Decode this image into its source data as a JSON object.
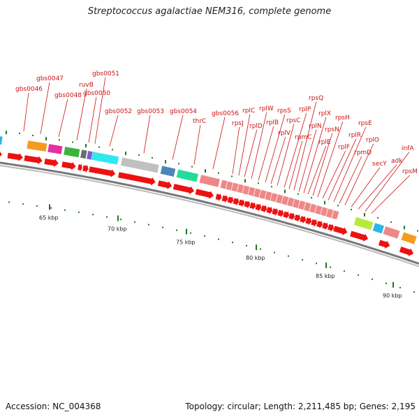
{
  "title": "Streptococcus agalactiae NEM316, complete genome",
  "footer": {
    "accession": "Accession: NC_004368",
    "summary": "Topology: circular; Length: 2,211,485 bp; Genes: 2,195"
  },
  "scale_labels": [
    "65 kbp",
    "70 kbp",
    "75 kbp",
    "80 kbp",
    "85 kbp",
    "90 kbp"
  ],
  "gene_labels": [
    "gbs0046",
    "gbs0047",
    "gbs0048",
    "ruvB",
    "gbs0050",
    "gbs0051",
    "gbs0052",
    "gbs0053",
    "gbs0054",
    "thrC",
    "gbs0056",
    "rpsJ",
    "rplC",
    "rplD",
    "rplW",
    "rplB",
    "rpsS",
    "rplV",
    "rpsC",
    "rplP",
    "rpmC",
    "rpsQ",
    "rplN",
    "rplX",
    "rplE",
    "rpsN",
    "rpsH",
    "rplF",
    "rplR",
    "rpsE",
    "rpmD",
    "rplO",
    "secY",
    "adk",
    "infA",
    "rpsM"
  ],
  "colors": {
    "label_red": "#cc1111",
    "arrow_red": "#ee1111",
    "ribosomal_pink": "#ee8888",
    "backbone": "#777777",
    "tick_green": "#227722"
  },
  "chart_data": {
    "type": "genome_map",
    "topology": "circular",
    "length_bp": 2211485,
    "genes_total": 2195,
    "visible_range_kbp": [
      60,
      92
    ],
    "scale_ticks_kbp": [
      65,
      70,
      75,
      80,
      85,
      90
    ],
    "genes": [
      {
        "name": "gbs0046",
        "color": "#29b6e8"
      },
      {
        "name": "gbs0047",
        "color": "#f39c1f"
      },
      {
        "name": "gbs0048",
        "color": "#e62fa0"
      },
      {
        "name": "ruvB",
        "color": "#3cb33c"
      },
      {
        "name": "gbs0050",
        "color": "#6b6b6b"
      },
      {
        "name": "gbs0051",
        "color": "#7a5dc8"
      },
      {
        "name": "gbs0052",
        "color": "#2ee8f0"
      },
      {
        "name": "gbs0053",
        "color": "#c0c0c0"
      },
      {
        "name": "gbs0054",
        "color": "#4a86b8"
      },
      {
        "name": "thrC",
        "color": "#22dd99"
      },
      {
        "name": "gbs0056",
        "color": "#ee8888"
      },
      {
        "name": "rpsJ",
        "color": "#ee8888"
      },
      {
        "name": "rplC",
        "color": "#ee8888"
      },
      {
        "name": "rplD",
        "color": "#ee8888"
      },
      {
        "name": "rplW",
        "color": "#ee8888"
      },
      {
        "name": "rplB",
        "color": "#ee8888"
      },
      {
        "name": "rpsS",
        "color": "#ee8888"
      },
      {
        "name": "rplV",
        "color": "#ee8888"
      },
      {
        "name": "rpsC",
        "color": "#ee8888"
      },
      {
        "name": "rplP",
        "color": "#ee8888"
      },
      {
        "name": "rpmC",
        "color": "#ee8888"
      },
      {
        "name": "rpsQ",
        "color": "#ee8888"
      },
      {
        "name": "rplN",
        "color": "#ee8888"
      },
      {
        "name": "rplX",
        "color": "#ee8888"
      },
      {
        "name": "rplE",
        "color": "#ee8888"
      },
      {
        "name": "rpsN",
        "color": "#ee8888"
      },
      {
        "name": "rpsH",
        "color": "#ee8888"
      },
      {
        "name": "rplF",
        "color": "#ee8888"
      },
      {
        "name": "rplR",
        "color": "#ee8888"
      },
      {
        "name": "rpsE",
        "color": "#ee8888"
      },
      {
        "name": "rpmD",
        "color": "#ee8888"
      },
      {
        "name": "rplO",
        "color": "#ee8888"
      },
      {
        "name": "secY",
        "color": "#b7ea3c"
      },
      {
        "name": "adk",
        "color": "#29b6e8"
      },
      {
        "name": "infA",
        "color": "#ee8888"
      },
      {
        "name": "rpsM",
        "color": "#f39c1f"
      }
    ]
  }
}
